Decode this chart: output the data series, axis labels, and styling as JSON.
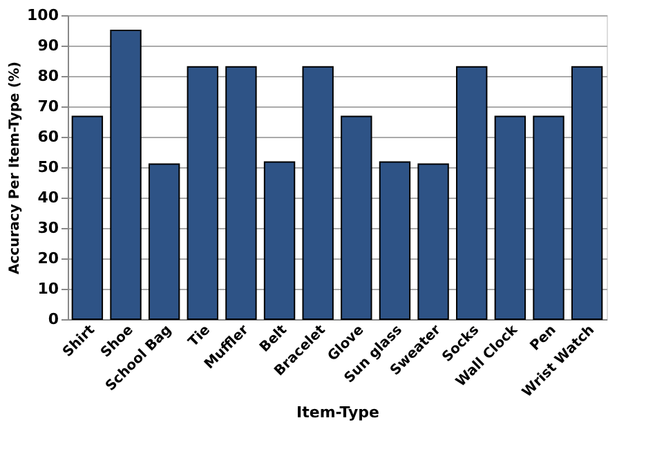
{
  "chart_data": {
    "type": "bar",
    "xlabel": "Item-Type",
    "ylabel": "Accuracy  Per Item-Type (%)",
    "categories": [
      "Shirt",
      "Shoe",
      "School Bag",
      "Tie",
      "Muffler",
      "Belt",
      "Bracelet",
      "Glove",
      "Sun glass",
      "Sweater",
      "Socks",
      "Wall Clock",
      "Pen",
      "Wrist Watch"
    ],
    "values": [
      66.7,
      95,
      51,
      83,
      83,
      51.7,
      83,
      66.7,
      51.7,
      51,
      83,
      66.7,
      66.7,
      83
    ],
    "color": "#2e5386",
    "ylim": [
      0,
      100
    ],
    "yticks": [
      0,
      10,
      20,
      30,
      40,
      50,
      60,
      70,
      80,
      90,
      100
    ],
    "grid": "y"
  }
}
